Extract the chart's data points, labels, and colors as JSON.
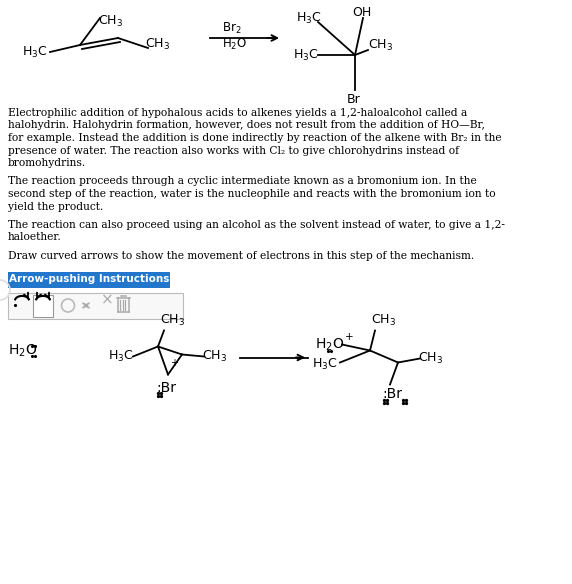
{
  "bg_color": "#ffffff",
  "button_bg": "#2277cc",
  "button_text": "Arrow-pushing Instructions",
  "button_text_color": "#ffffff",
  "para1_lines": [
    "Electrophilic addition of hypohalous acids to alkenes yields a 1,2-haloalcohol called a",
    "halohydrin. Halohydrin formation, however, does not result from the addition of HO—Br,",
    "for example. Instead the addition is done indirectly by reaction of the alkene with Br₂ in the",
    "presence of water. The reaction also works with Cl₂ to give chlorohydrins instead of",
    "bromohydrins."
  ],
  "para2_lines": [
    "The reaction proceeds through a cyclic intermediate known as a bromonium ion. In the",
    "second step of the reaction, water is the nucleophile and reacts with the bromonium ion to",
    "yield the product."
  ],
  "para3_lines": [
    "The reaction can also proceed using an alcohol as the solvent instead of water, to give a 1,2-",
    "haloether."
  ],
  "para4_lines": [
    "Draw curved arrows to show the movement of electrons in this step of the mechanism."
  ]
}
